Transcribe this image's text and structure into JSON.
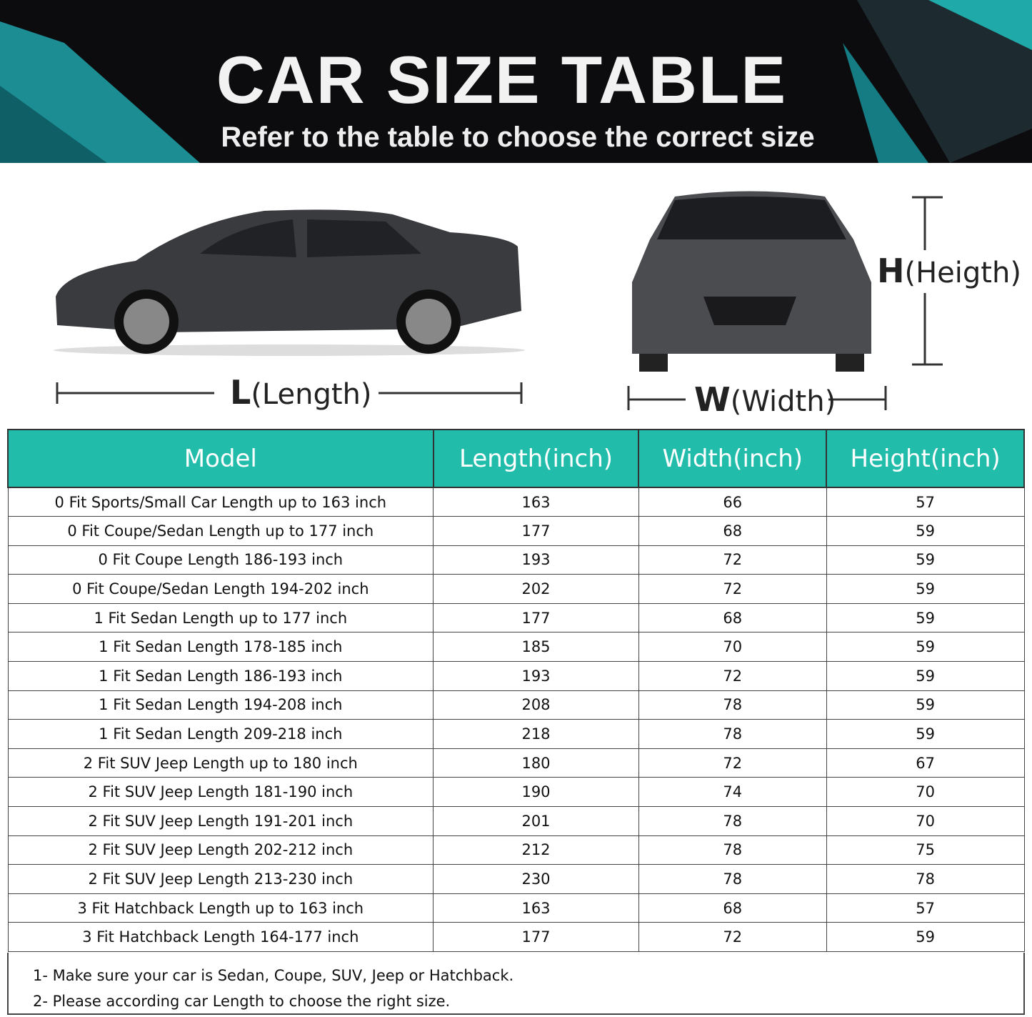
{
  "header": {
    "title": "CAR SIZE TABLE",
    "subtitle": "Refer to the table to choose the correct size"
  },
  "dimensions": {
    "length": {
      "letter": "L",
      "word": "(Length)"
    },
    "width": {
      "letter": "W",
      "word": "(Width)"
    },
    "height": {
      "letter": "H",
      "word": "(Heigth)"
    }
  },
  "colors": {
    "header_bg": "#21bcaa",
    "banner_bg": "#0c0c0e",
    "accent": "#1fa9a8"
  },
  "table": {
    "columns": [
      "Model",
      "Length(inch)",
      "Width(inch)",
      "Height(inch)"
    ],
    "rows": [
      [
        "0 Fit Sports/Small Car Length up to 163 inch",
        "163",
        "66",
        "57"
      ],
      [
        "0 Fit Coupe/Sedan Length up to 177 inch",
        "177",
        "68",
        "59"
      ],
      [
        "0 Fit Coupe Length 186-193 inch",
        "193",
        "72",
        "59"
      ],
      [
        "0 Fit Coupe/Sedan Length 194-202 inch",
        "202",
        "72",
        "59"
      ],
      [
        "1 Fit Sedan Length up to 177 inch",
        "177",
        "68",
        "59"
      ],
      [
        "1 Fit Sedan Length 178-185 inch",
        "185",
        "70",
        "59"
      ],
      [
        "1 Fit Sedan Length 186-193 inch",
        "193",
        "72",
        "59"
      ],
      [
        "1 Fit Sedan Length 194-208 inch",
        "208",
        "78",
        "59"
      ],
      [
        "1 Fit Sedan Length 209-218 inch",
        "218",
        "78",
        "59"
      ],
      [
        "2 Fit SUV Jeep Length up to 180 inch",
        "180",
        "72",
        "67"
      ],
      [
        "2 Fit SUV Jeep Length 181-190 inch",
        "190",
        "74",
        "70"
      ],
      [
        "2 Fit SUV Jeep Length 191-201 inch",
        "201",
        "78",
        "70"
      ],
      [
        "2 Fit SUV Jeep Length 202-212 inch",
        "212",
        "78",
        "75"
      ],
      [
        "2 Fit SUV Jeep Length 213-230 inch",
        "230",
        "78",
        "78"
      ],
      [
        "3 Fit Hatchback Length up to 163 inch",
        "163",
        "68",
        "57"
      ],
      [
        "3 Fit Hatchback Length 164-177 inch",
        "177",
        "72",
        "59"
      ]
    ]
  },
  "notes": [
    "1- Make sure your car is Sedan, Coupe, SUV, Jeep or Hatchback.",
    "2- Please according car Length to choose the right size."
  ]
}
